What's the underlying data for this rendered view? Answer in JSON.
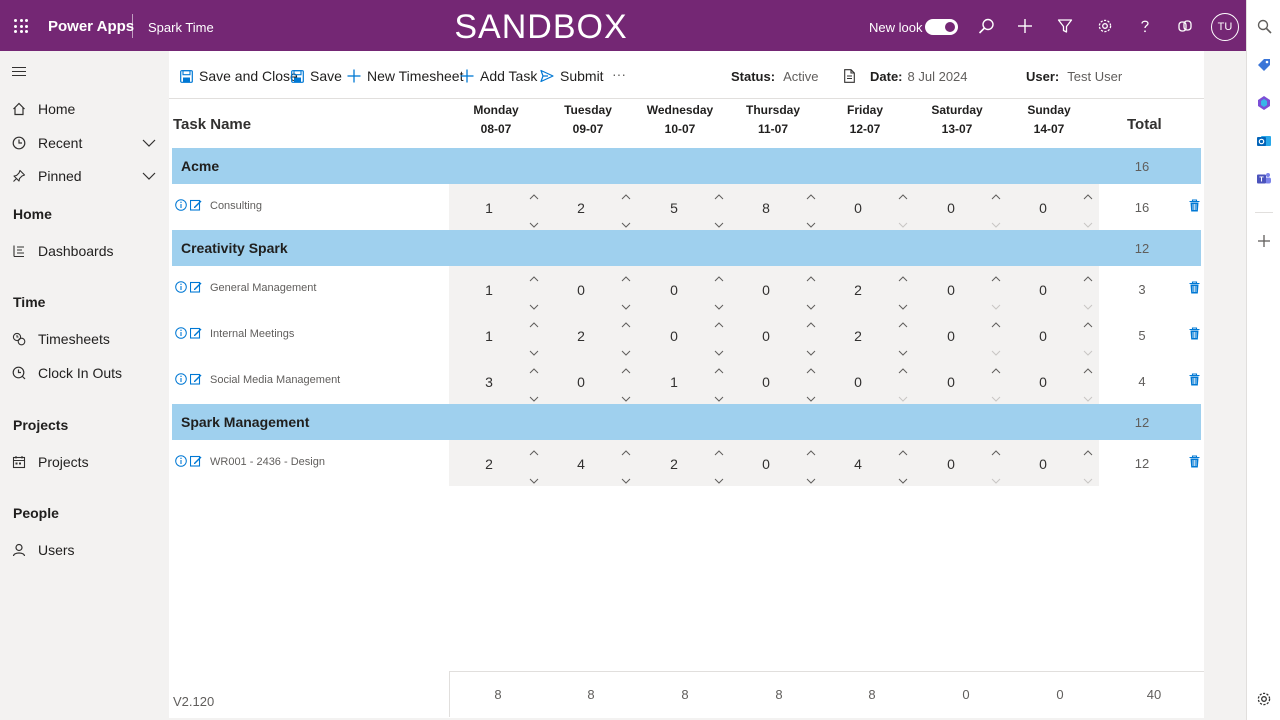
{
  "header": {
    "app_name": "Power Apps",
    "environment": "Spark Time",
    "banner": "SANDBOX",
    "new_look_label": "New look",
    "new_look_on": true,
    "avatar_initials": "TU",
    "icons": [
      "search-icon",
      "add-icon",
      "filter-icon",
      "gear-icon",
      "help-icon",
      "copilot-icon"
    ]
  },
  "right_rail": {
    "icons": [
      "search-icon",
      "tag-icon",
      "copilot-icon",
      "outlook-icon",
      "teams-icon",
      "add-icon",
      "settings-icon"
    ]
  },
  "nav": {
    "items": [
      {
        "label": "Home",
        "icon": "home-icon"
      },
      {
        "label": "Recent",
        "icon": "clock-icon",
        "expandable": true
      },
      {
        "label": "Pinned",
        "icon": "pin-icon",
        "expandable": true
      }
    ],
    "sections": [
      {
        "title": "Home",
        "items": [
          {
            "label": "Dashboards",
            "icon": "dashboard-icon"
          }
        ]
      },
      {
        "title": "Time",
        "items": [
          {
            "label": "Timesheets",
            "icon": "timesheet-icon"
          },
          {
            "label": "Clock In Outs",
            "icon": "clock-icon"
          }
        ]
      },
      {
        "title": "Projects",
        "items": [
          {
            "label": "Projects",
            "icon": "calendar-icon"
          }
        ]
      },
      {
        "title": "People",
        "items": [
          {
            "label": "Users",
            "icon": "person-icon"
          }
        ]
      }
    ]
  },
  "toolbar": {
    "save_close_label": "Save and Close",
    "save_label": "Save",
    "new_timesheet_label": "New Timesheet",
    "add_task_label": "Add Task",
    "submit_label": "Submit",
    "more_label": "···",
    "status_label": "Status:",
    "status_value": "Active",
    "date_label": "Date:",
    "date_value": "8 Jul 2024",
    "user_label": "User:",
    "user_value": "Test User"
  },
  "grid": {
    "task_name_header": "Task Name",
    "total_header": "Total",
    "days": [
      {
        "name": "Monday",
        "date": "08-07"
      },
      {
        "name": "Tuesday",
        "date": "09-07"
      },
      {
        "name": "Wednesday",
        "date": "10-07"
      },
      {
        "name": "Thursday",
        "date": "11-07"
      },
      {
        "name": "Friday",
        "date": "12-07"
      },
      {
        "name": "Saturday",
        "date": "13-07"
      },
      {
        "name": "Sunday",
        "date": "14-07"
      }
    ],
    "groups": [
      {
        "name": "Acme",
        "total": "16",
        "tasks": [
          {
            "name": "Consulting",
            "hours": [
              "1",
              "2",
              "5",
              "8",
              "0",
              "0",
              "0"
            ],
            "total": "16"
          }
        ]
      },
      {
        "name": "Creativity Spark",
        "total": "12",
        "tasks": [
          {
            "name": "General Management",
            "hours": [
              "1",
              "0",
              "0",
              "0",
              "2",
              "0",
              "0"
            ],
            "total": "3"
          },
          {
            "name": "Internal Meetings",
            "hours": [
              "1",
              "2",
              "0",
              "0",
              "2",
              "0",
              "0"
            ],
            "total": "5"
          },
          {
            "name": "Social Media Management",
            "hours": [
              "3",
              "0",
              "1",
              "0",
              "0",
              "0",
              "0"
            ],
            "total": "4"
          }
        ]
      },
      {
        "name": "Spark Management",
        "total": "12",
        "tasks": [
          {
            "name": "WR001 - 2436 - Design",
            "hours": [
              "2",
              "4",
              "2",
              "0",
              "4",
              "0",
              "0"
            ],
            "total": "12"
          }
        ]
      }
    ],
    "day_totals": [
      "8",
      "8",
      "8",
      "8",
      "8",
      "0",
      "0"
    ],
    "grand_total": "40"
  },
  "version": "V2.120",
  "colors": {
    "header_bg": "#742774",
    "group_bg": "#9fd0ee",
    "accent": "#0078d4",
    "cell_bg": "#f3f2f1"
  }
}
